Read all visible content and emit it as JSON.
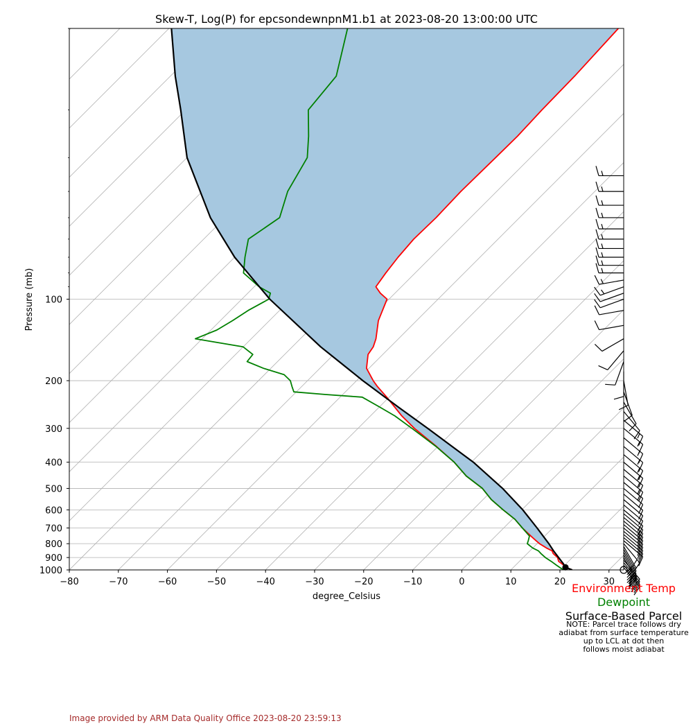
{
  "chart_data": {
    "type": "line",
    "subtype": "skew-t log-p",
    "title": "Skew-T, Log(P) for epcsondewnpnM1.b1 at 2023-08-20 13:00:00 UTC",
    "xlabel": "degree_Celsius",
    "ylabel": "Pressure (mb)",
    "xlim": [
      -80,
      33
    ],
    "ylim": [
      1000,
      10
    ],
    "yscale": "log",
    "x_ticks": [
      -80,
      -70,
      -60,
      -50,
      -40,
      -30,
      -20,
      -10,
      0,
      10,
      20,
      30
    ],
    "y_ticks": [
      100,
      200,
      300,
      400,
      500,
      600,
      700,
      800,
      900,
      1000
    ],
    "grid": true,
    "series": [
      {
        "name": "Environment Temp",
        "color": "#ff0000",
        "pressure": [
          1000,
          985,
          960,
          930,
          900,
          870,
          850,
          830,
          800,
          780,
          750,
          700,
          650,
          600,
          550,
          500,
          450,
          400,
          350,
          300,
          270,
          250,
          230,
          210,
          200,
          180,
          160,
          150,
          140,
          120,
          100,
          95,
          90,
          80,
          70,
          60,
          50,
          40,
          30,
          25,
          20,
          15,
          10
        ],
        "temperature": [
          22.5,
          21.2,
          19.8,
          18.0,
          17.0,
          15.3,
          14.5,
          12.8,
          10.5,
          9.2,
          7.2,
          3.8,
          0.5,
          -3.8,
          -8.3,
          -12.4,
          -18.2,
          -23.5,
          -30.3,
          -38.5,
          -43.6,
          -46.9,
          -50.5,
          -54.6,
          -56.6,
          -60.5,
          -63.0,
          -63.5,
          -64.6,
          -67.8,
          -70.4,
          -73.0,
          -75.2,
          -76.0,
          -76.7,
          -77.2,
          -77.0,
          -77.3,
          -77.1,
          -77.0,
          -77.4,
          -77.6,
          -78.4
        ]
      },
      {
        "name": "Dewpoint",
        "color": "#008000",
        "pressure": [
          1000,
          985,
          960,
          930,
          900,
          870,
          850,
          830,
          800,
          780,
          750,
          700,
          650,
          600,
          550,
          500,
          450,
          400,
          350,
          300,
          270,
          250,
          230,
          225,
          220,
          210,
          200,
          190,
          180,
          170,
          160,
          150,
          140,
          130,
          120,
          110,
          100,
          95,
          90,
          80,
          70,
          60,
          50,
          40,
          30,
          25,
          20,
          15,
          10
        ],
        "temperature": [
          20.8,
          19.8,
          18.3,
          16.5,
          14.5,
          12.8,
          11.7,
          10.0,
          8.0,
          7.6,
          6.9,
          3.8,
          0.5,
          -3.8,
          -8.3,
          -12.4,
          -18.2,
          -23.5,
          -30.4,
          -39.0,
          -45.0,
          -50.0,
          -55.5,
          -63.5,
          -70.5,
          -72.0,
          -73.5,
          -76.0,
          -81.5,
          -86.2,
          -86.5,
          -90.0,
          -101.4,
          -98.8,
          -97.5,
          -96.4,
          -94.5,
          -95.4,
          -99.0,
          -105.0,
          -107.9,
          -110.9,
          -108.9,
          -112.6,
          -115.5,
          -119.6,
          -125.0,
          -126.2,
          -133.6
        ]
      },
      {
        "name": "Surface-Based Parcel",
        "color": "#000000",
        "pressure": [
          1000,
          978,
          950,
          900,
          850,
          800,
          700,
          600,
          500,
          400,
          300,
          250,
          200,
          150,
          100,
          70,
          50,
          30,
          20,
          15,
          10
        ],
        "temperature": [
          22.5,
          20.6,
          19.5,
          17.2,
          14.8,
          12.4,
          6.8,
          0.2,
          -8.3,
          -19.6,
          -35.8,
          -46.2,
          -58.7,
          -74.2,
          -94.3,
          -110.0,
          -123.0,
          -140.0,
          -151.0,
          -159.0,
          -169.5
        ]
      }
    ],
    "lcl_marker": {
      "pressure": 978,
      "temperature": 20.6
    },
    "wind_barbs": {
      "pressure": [
        1000,
        980,
        960,
        940,
        920,
        900,
        880,
        860,
        840,
        820,
        800,
        780,
        760,
        740,
        720,
        700,
        680,
        660,
        640,
        620,
        600,
        575,
        550,
        525,
        500,
        475,
        450,
        425,
        400,
        375,
        350,
        325,
        300,
        280,
        260,
        240,
        220,
        200,
        185,
        170,
        155,
        140,
        125,
        110,
        100,
        95,
        90,
        85,
        80,
        75,
        70,
        65,
        60,
        55,
        50,
        45,
        40,
        35
      ],
      "speed_kt": [
        0,
        30,
        30,
        30,
        30,
        25,
        25,
        25,
        20,
        20,
        15,
        15,
        15,
        15,
        15,
        15,
        15,
        15,
        15,
        15,
        10,
        10,
        10,
        10,
        10,
        15,
        15,
        15,
        15,
        15,
        15,
        15,
        15,
        15,
        10,
        10,
        10,
        10,
        10,
        10,
        10,
        10,
        10,
        10,
        10,
        10,
        15,
        15,
        15,
        15,
        15,
        15,
        15,
        15,
        15,
        15,
        15,
        15
      ],
      "direction_deg": [
        0,
        140,
        140,
        140,
        140,
        150,
        150,
        150,
        150,
        150,
        140,
        130,
        130,
        130,
        130,
        130,
        130,
        130,
        130,
        130,
        130,
        130,
        130,
        130,
        130,
        130,
        130,
        130,
        130,
        130,
        130,
        130,
        130,
        130,
        140,
        150,
        160,
        170,
        180,
        200,
        220,
        240,
        260,
        260,
        250,
        250,
        250,
        260,
        270,
        270,
        270,
        270,
        270,
        270,
        270,
        270,
        270,
        270
      ]
    }
  },
  "legend": {
    "env_temp": "Environment Temp",
    "dewpoint": "Dewpoint",
    "parcel": "Surface-Based Parcel",
    "note_lines": [
      "NOTE: Parcel trace follows dry",
      "adiabat from surface temperature",
      "up to LCL at dot then",
      "follows moist adiabat"
    ]
  },
  "credit": "Image provided by ARM Data Quality Office 2023-08-20 23:59:13",
  "colors": {
    "env_temp": "#ff0000",
    "dewpoint": "#008000",
    "parcel": "#000000",
    "cape_fill": "#a6c8e0",
    "credit": "#a52a2a"
  }
}
